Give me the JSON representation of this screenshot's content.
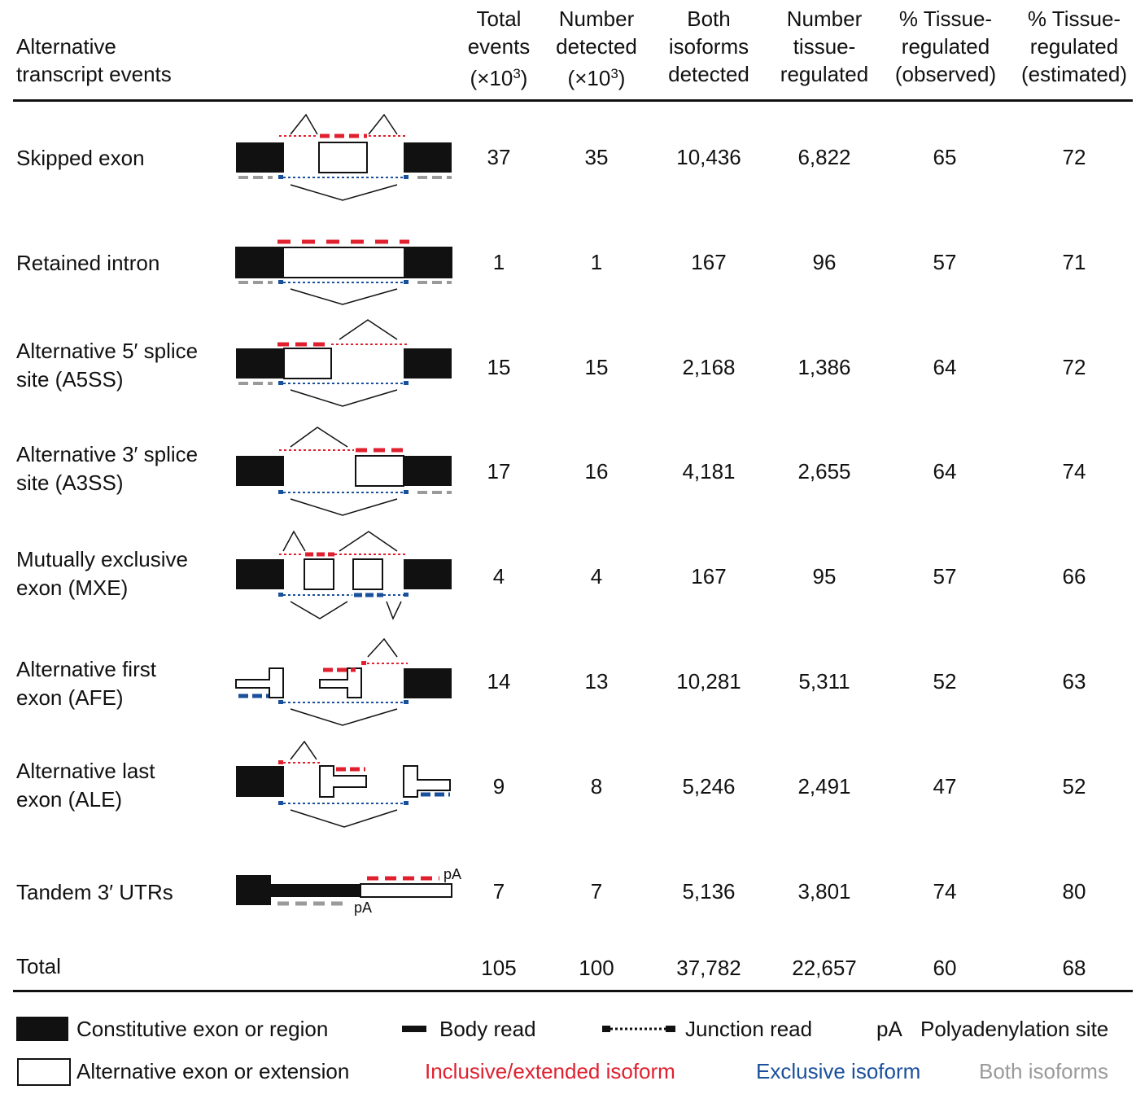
{
  "headers": {
    "event": [
      "Alternative",
      "transcript events"
    ],
    "total": [
      "Total",
      "events",
      "(×10",
      "3",
      ")"
    ],
    "detected": [
      "Number",
      "detected",
      "(×10",
      "3",
      ")"
    ],
    "both": [
      "Both",
      "isoforms",
      "detected"
    ],
    "tissue": [
      "Number",
      "tissue-",
      "regulated"
    ],
    "observed": [
      "% Tissue-",
      "regulated",
      "(observed)"
    ],
    "estimated": [
      "% Tissue-",
      "regulated",
      "(estimated)"
    ]
  },
  "rows": [
    {
      "label": [
        "Skipped exon"
      ],
      "total": "37",
      "detected": "35",
      "both": "10,436",
      "tissue": "6,822",
      "observed": "65",
      "estimated": "72"
    },
    {
      "label": [
        "Retained intron"
      ],
      "total": "1",
      "detected": "1",
      "both": "167",
      "tissue": "96",
      "observed": "57",
      "estimated": "71"
    },
    {
      "label": [
        "Alternative 5′ splice",
        "site (A5SS)"
      ],
      "total": "15",
      "detected": "15",
      "both": "2,168",
      "tissue": "1,386",
      "observed": "64",
      "estimated": "72"
    },
    {
      "label": [
        "Alternative 3′ splice",
        "site (A3SS)"
      ],
      "total": "17",
      "detected": "16",
      "both": "4,181",
      "tissue": "2,655",
      "observed": "64",
      "estimated": "74"
    },
    {
      "label": [
        "Mutually exclusive",
        "exon (MXE)"
      ],
      "total": "4",
      "detected": "4",
      "both": "167",
      "tissue": "95",
      "observed": "57",
      "estimated": "66"
    },
    {
      "label": [
        "Alternative first",
        "exon (AFE)"
      ],
      "total": "14",
      "detected": "13",
      "both": "10,281",
      "tissue": "5,311",
      "observed": "52",
      "estimated": "63"
    },
    {
      "label": [
        "Alternative last",
        "exon (ALE)"
      ],
      "total": "9",
      "detected": "8",
      "both": "5,246",
      "tissue": "2,491",
      "observed": "47",
      "estimated": "52"
    },
    {
      "label": [
        "Tandem 3′ UTRs"
      ],
      "total": "7",
      "detected": "7",
      "both": "5,136",
      "tissue": "3,801",
      "observed": "74",
      "estimated": "80"
    }
  ],
  "total_row": {
    "label": "Total",
    "total": "105",
    "detected": "100",
    "both": "37,782",
    "tissue": "22,657",
    "observed": "60",
    "estimated": "68"
  },
  "pa_label": "pA",
  "legend": {
    "constitutive": "Constitutive exon or region",
    "alternative": "Alternative exon or extension",
    "body_read": "Body read",
    "junction_read": "Junction read",
    "pa_abbrev": "pA",
    "pa_text": "Polyadenylation site",
    "inclusive": "Inclusive/extended isoform",
    "exclusive": "Exclusive isoform",
    "both": "Both isoforms"
  },
  "colors": {
    "inclusive": "#e0202f",
    "exclusive": "#1a4f9c",
    "both": "#9a9a9a",
    "constitutive": "#111111"
  }
}
